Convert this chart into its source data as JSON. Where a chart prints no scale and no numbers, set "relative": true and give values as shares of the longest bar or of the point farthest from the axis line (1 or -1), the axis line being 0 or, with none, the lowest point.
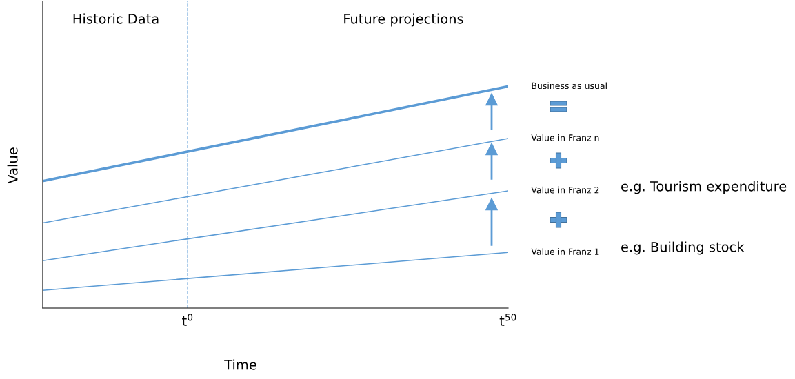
{
  "chart_data": {
    "type": "line",
    "relative": true,
    "xlabel": "Time",
    "ylabel": "Value",
    "x": [
      -22.6,
      50
    ],
    "xlim": [
      -22.6,
      50
    ],
    "xticks": [
      {
        "value": 0,
        "label": "t$^{0}$"
      },
      {
        "value": 50,
        "label": "t$^{50}$"
      }
    ],
    "series": [
      {
        "name": "Business as usual",
        "color": "#5b9bd5",
        "values": [
          0.573,
          1
        ]
      },
      {
        "name": "Value in Franz n",
        "color": "#5b9bd5",
        "values": [
          0.384,
          0.765
        ]
      },
      {
        "name": "Value in Franz 2",
        "color": "#5b9bd5",
        "values": [
          0.214,
          0.529
        ]
      },
      {
        "name": "Value in Franz 1",
        "color": "#5b9bd5",
        "values": [
          0.08,
          0.251
        ]
      }
    ],
    "ref_lines": [
      {
        "axis": "x",
        "value": 0,
        "color": "#5b9bd5",
        "line_style": "dashed"
      }
    ],
    "annotations": [
      "Historic Data",
      "Future projections",
      "e.g. Tourism expenditure",
      "e.g. Building stock"
    ],
    "grid": false,
    "marker": "none",
    "line_style": "solid"
  }
}
